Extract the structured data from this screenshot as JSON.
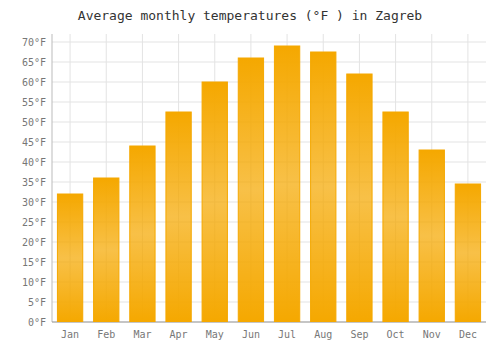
{
  "chart_data": {
    "type": "bar",
    "title": "Average monthly temperatures (°F ) in Zagreb",
    "categories": [
      "Jan",
      "Feb",
      "Mar",
      "Apr",
      "May",
      "Jun",
      "Jul",
      "Aug",
      "Sep",
      "Oct",
      "Nov",
      "Dec"
    ],
    "values": [
      32,
      36,
      44,
      52.5,
      60,
      66,
      69,
      67.5,
      62,
      52.5,
      43,
      34.5
    ],
    "color": "#F5A800",
    "ylim": [
      0,
      72
    ],
    "yticks": [
      {
        "value": 0,
        "label": "0°F"
      },
      {
        "value": 5,
        "label": "5°F"
      },
      {
        "value": 10,
        "label": "10°F"
      },
      {
        "value": 15,
        "label": "15°F"
      },
      {
        "value": 20,
        "label": "20°F"
      },
      {
        "value": 25,
        "label": "25°F"
      },
      {
        "value": 30,
        "label": "30°F"
      },
      {
        "value": 35,
        "label": "35°F"
      },
      {
        "value": 40,
        "label": "40°F"
      },
      {
        "value": 45,
        "label": "45°F"
      },
      {
        "value": 50,
        "label": "50°F"
      },
      {
        "value": 55,
        "label": "55°F"
      },
      {
        "value": 60,
        "label": "60°F"
      },
      {
        "value": 65,
        "label": "65°F"
      },
      {
        "value": 70,
        "label": "70°F"
      }
    ],
    "grid": true
  }
}
